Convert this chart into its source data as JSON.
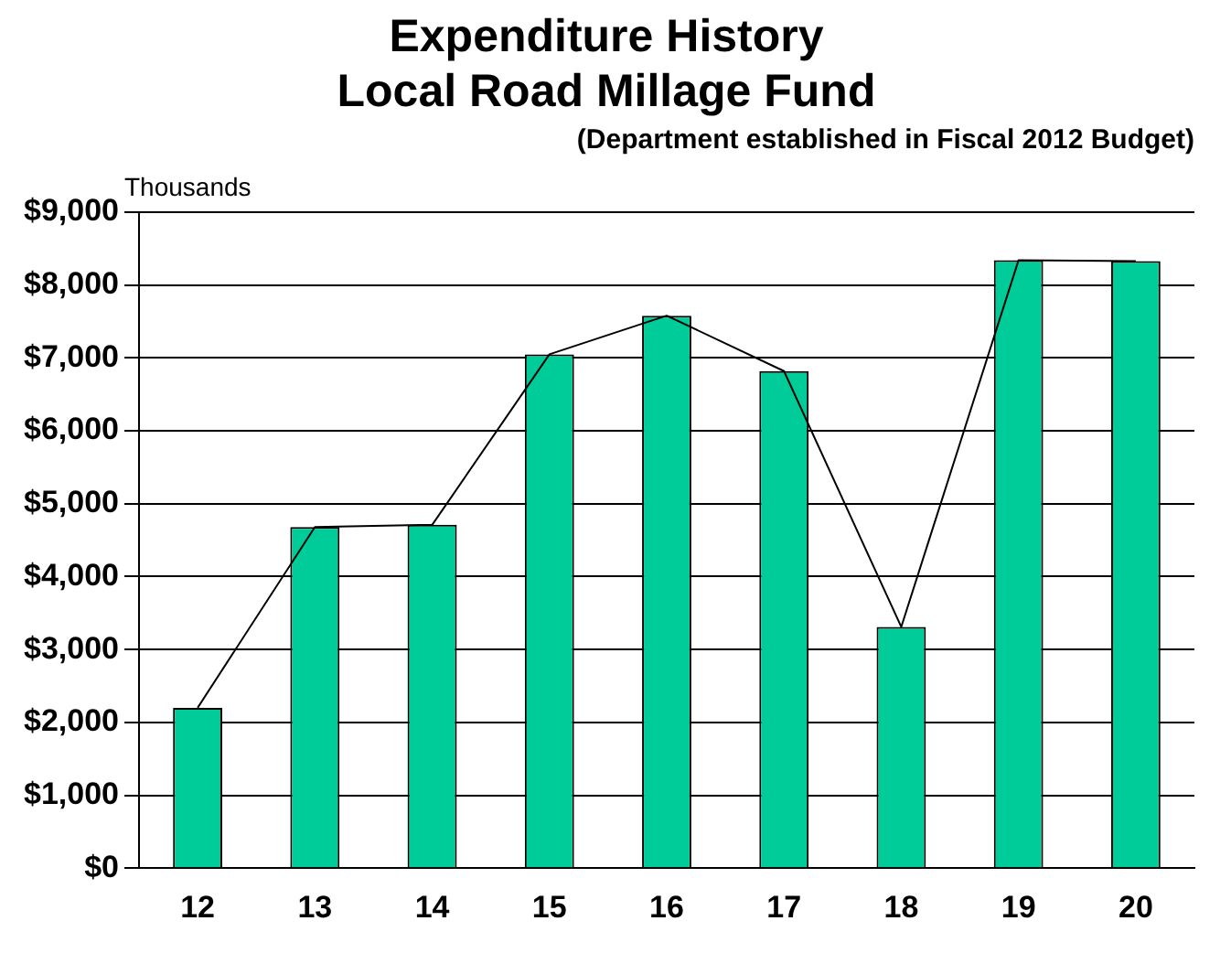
{
  "chart_data": {
    "type": "bar",
    "title": [
      "Expenditure History",
      "Local Road Millage Fund"
    ],
    "subtitle": "(Department established in Fiscal 2012 Budget)",
    "ylabel": "Thousands",
    "categories": [
      "12",
      "13",
      "14",
      "15",
      "16",
      "17",
      "18",
      "19",
      "20"
    ],
    "series": [
      {
        "color": "#00cc99",
        "values": [
          2200,
          4680,
          4710,
          7050,
          7580,
          6820,
          3310,
          8340,
          8330
        ]
      },
      {
        "type": "line",
        "color": "#000000",
        "values": [
          2200,
          4680,
          4710,
          7050,
          7580,
          6820,
          3310,
          8340,
          8330
        ]
      }
    ],
    "ylim": [
      0,
      9000
    ],
    "yticks": [
      {
        "value": 0,
        "label": "$0"
      },
      {
        "value": 1000,
        "label": "$1,000"
      },
      {
        "value": 2000,
        "label": "$2,000"
      },
      {
        "value": 3000,
        "label": "$3,000"
      },
      {
        "value": 4000,
        "label": "$4,000"
      },
      {
        "value": 5000,
        "label": "$5,000"
      },
      {
        "value": 6000,
        "label": "$6,000"
      },
      {
        "value": 7000,
        "label": "$7,000"
      },
      {
        "value": 8000,
        "label": "$8,000"
      },
      {
        "value": 9000,
        "label": "$9,000"
      }
    ],
    "grid": "y",
    "legend": false,
    "marker": "none"
  }
}
